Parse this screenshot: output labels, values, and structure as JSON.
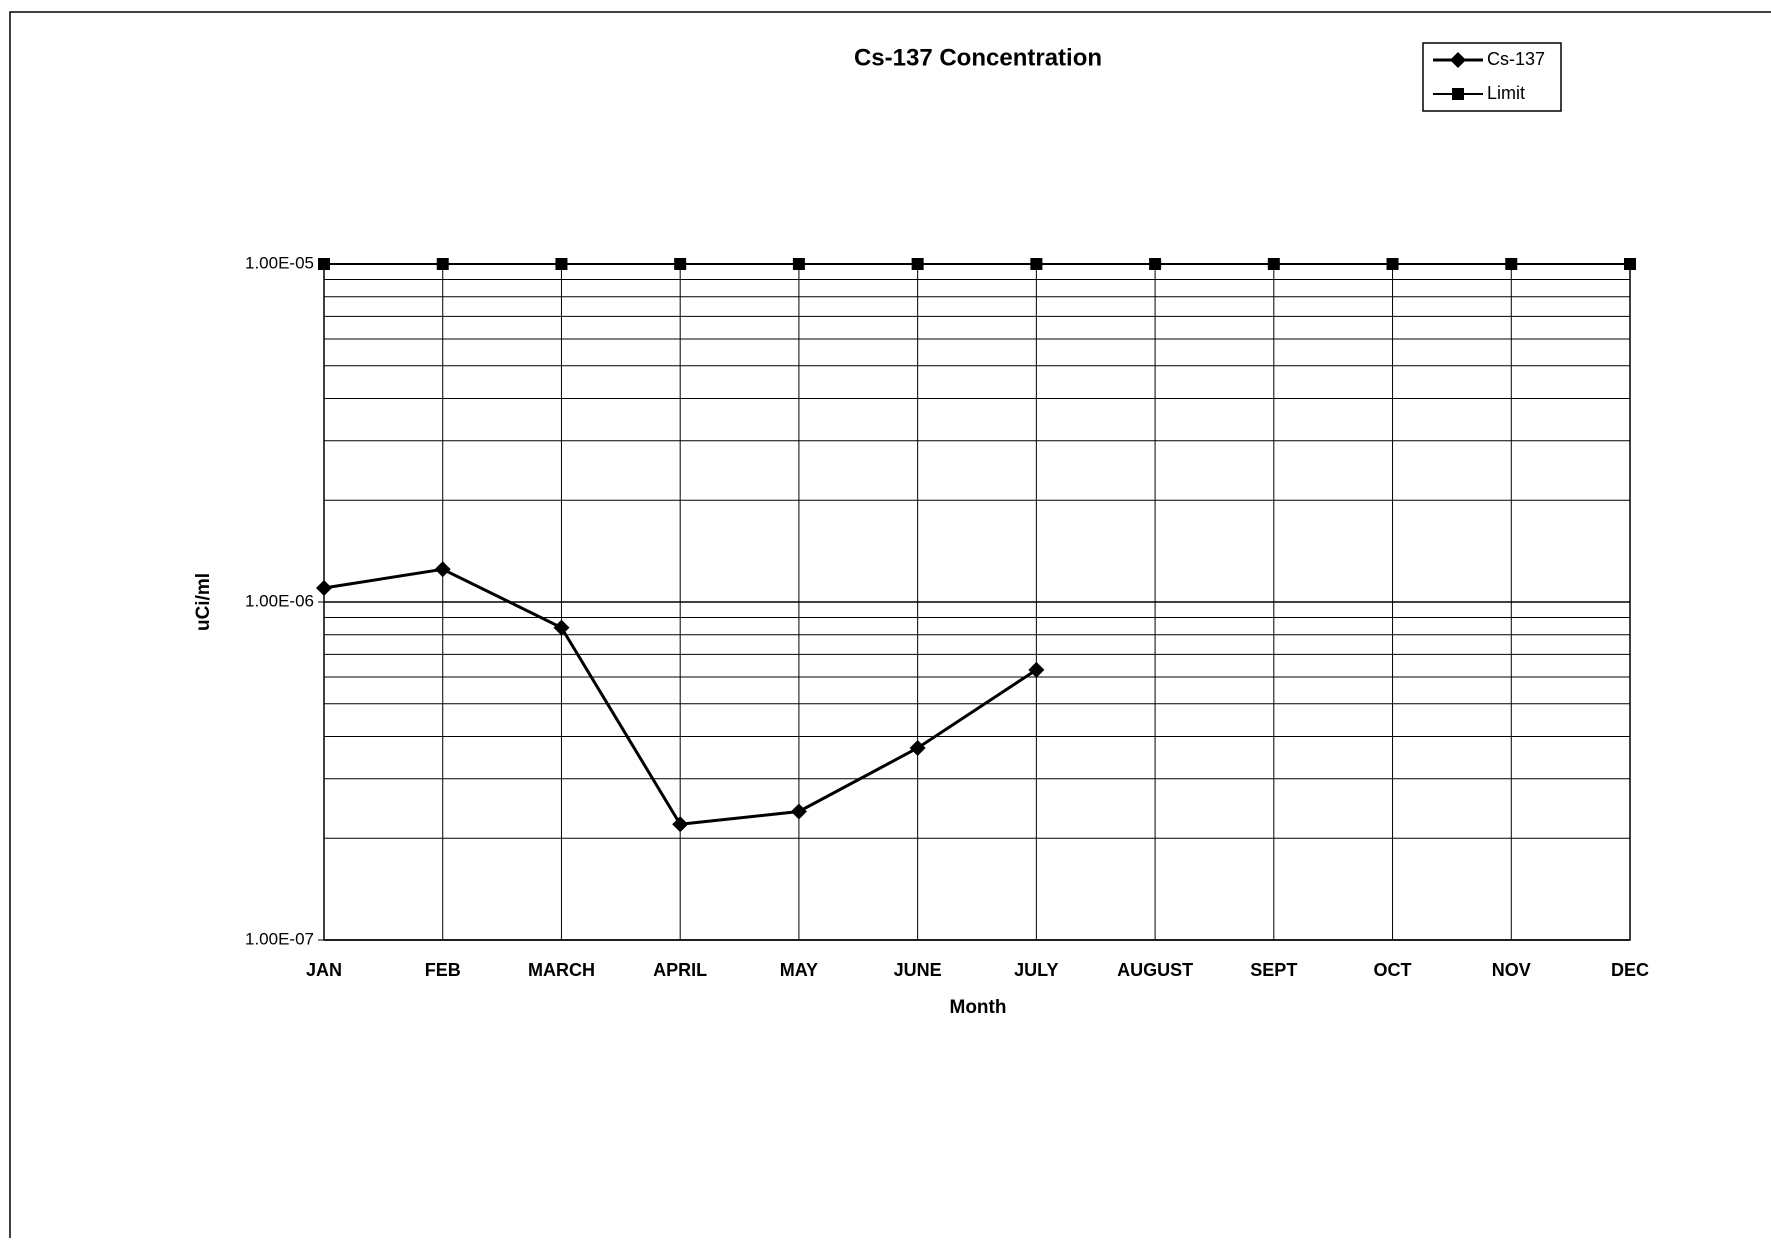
{
  "chart_data": {
    "type": "line",
    "title": "Cs-137 Concentration",
    "x_label": "Month",
    "y_label": "uCi/ml",
    "categories": [
      "JAN",
      "FEB",
      "MARCH",
      "APRIL",
      "MAY",
      "JUNE",
      "JULY",
      "AUGUST",
      "SEPT",
      "OCT",
      "NOV",
      "DEC"
    ],
    "series": [
      {
        "name": "Cs-137",
        "color": "#000000",
        "marker": "diamond",
        "values": [
          1.1e-06,
          1.25e-06,
          8.4e-07,
          2.2e-07,
          2.4e-07,
          3.7e-07,
          6.3e-07,
          null,
          null,
          null,
          null,
          null
        ]
      },
      {
        "name": "Limit",
        "color": "#000000",
        "marker": "square",
        "values": [
          1e-05,
          1e-05,
          1e-05,
          1e-05,
          1e-05,
          1e-05,
          1e-05,
          1e-05,
          1e-05,
          1e-05,
          1e-05,
          1e-05
        ]
      }
    ],
    "ylim": [
      1e-07,
      1e-05
    ],
    "log_y": true,
    "grid": true,
    "legend": "top-right",
    "yticks": [
      {
        "value": 1e-07,
        "label": "1.00E-07"
      },
      {
        "value": 1e-06,
        "label": "1.00E-06"
      },
      {
        "value": 1e-05,
        "label": "1.00E-05"
      }
    ]
  }
}
